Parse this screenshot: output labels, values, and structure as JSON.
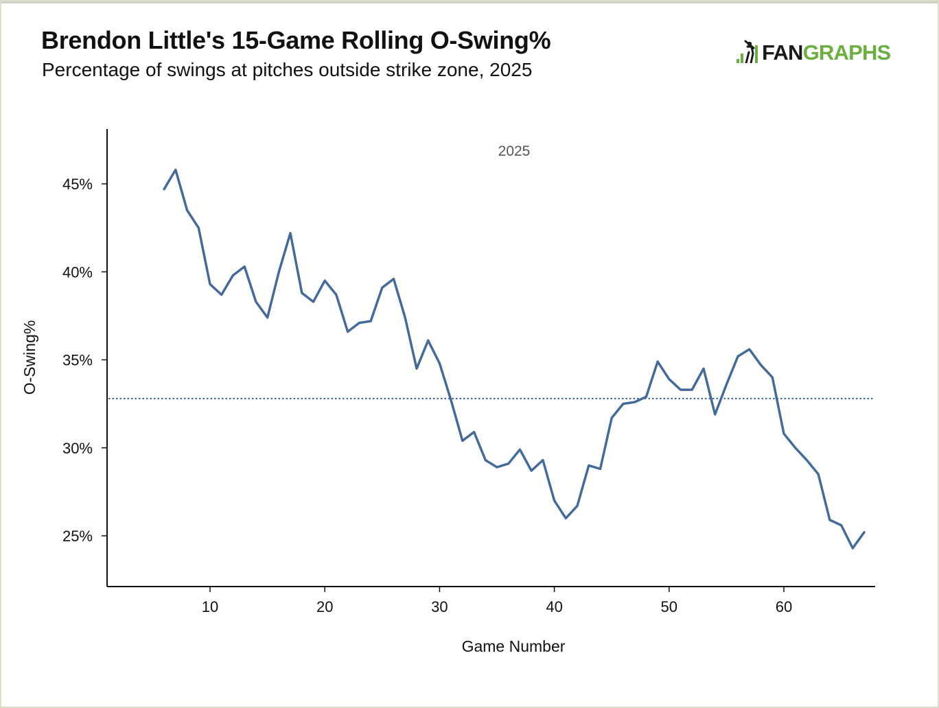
{
  "header": {
    "title": "Brendon Little's 15-Game Rolling O-Swing%",
    "subtitle": "Percentage of swings at pitches outside strike zone, 2025"
  },
  "logo": {
    "icon": "batter-bars-icon",
    "text_dark": "FAN",
    "text_green": "GRAPHS",
    "colors": {
      "dark": "#1a1a1a",
      "green": "#6aaf3f"
    }
  },
  "chart_data": {
    "type": "line",
    "title": "Brendon Little's 15-Game Rolling O-Swing%",
    "subtitle": "Percentage of swings at pitches outside strike zone, 2025",
    "xlabel": "Game Number",
    "ylabel": "O-Swing%",
    "annotation": "2025",
    "xlim": [
      1,
      68
    ],
    "ylim": [
      22.0,
      48.0
    ],
    "x_ticks": [
      10,
      20,
      30,
      40,
      50,
      60
    ],
    "y_ticks": [
      25,
      30,
      35,
      40,
      45
    ],
    "y_tick_labels": [
      "25%",
      "30%",
      "35%",
      "40%",
      "45%"
    ],
    "grid": false,
    "reference_line": {
      "y": 32.8,
      "style": "dotted",
      "color": "#3c6a9c"
    },
    "series_color": "#436a99",
    "series": [
      {
        "x": [
          6,
          7,
          8,
          9,
          10,
          11,
          12,
          13,
          14,
          15,
          16,
          17,
          18,
          19,
          20,
          21,
          22,
          23,
          24,
          25,
          26,
          27,
          28,
          29,
          30,
          31,
          32,
          33,
          34,
          35,
          36,
          37,
          38,
          39,
          40,
          41,
          42,
          43,
          44,
          45,
          46,
          47,
          48,
          49,
          50,
          51,
          52,
          53,
          54,
          55,
          56,
          57,
          58,
          59,
          60,
          61,
          62,
          63,
          64,
          65,
          66,
          67
        ],
        "values": [
          44.7,
          45.8,
          43.5,
          42.5,
          39.3,
          38.7,
          39.8,
          40.3,
          38.3,
          37.4,
          40.0,
          42.2,
          38.8,
          38.3,
          39.5,
          38.7,
          36.6,
          37.1,
          37.2,
          39.1,
          39.6,
          37.4,
          34.5,
          36.1,
          34.8,
          32.7,
          30.4,
          30.9,
          29.3,
          28.9,
          29.1,
          29.9,
          28.7,
          29.3,
          27.0,
          26.0,
          26.7,
          29.0,
          28.8,
          31.7,
          32.5,
          32.6,
          32.9,
          34.9,
          33.9,
          33.3,
          33.3,
          34.5,
          31.9,
          33.6,
          35.2,
          35.6,
          34.7,
          34.0,
          30.8,
          30.0,
          29.3,
          28.5,
          25.9,
          25.6,
          24.3,
          25.2
        ]
      }
    ]
  }
}
